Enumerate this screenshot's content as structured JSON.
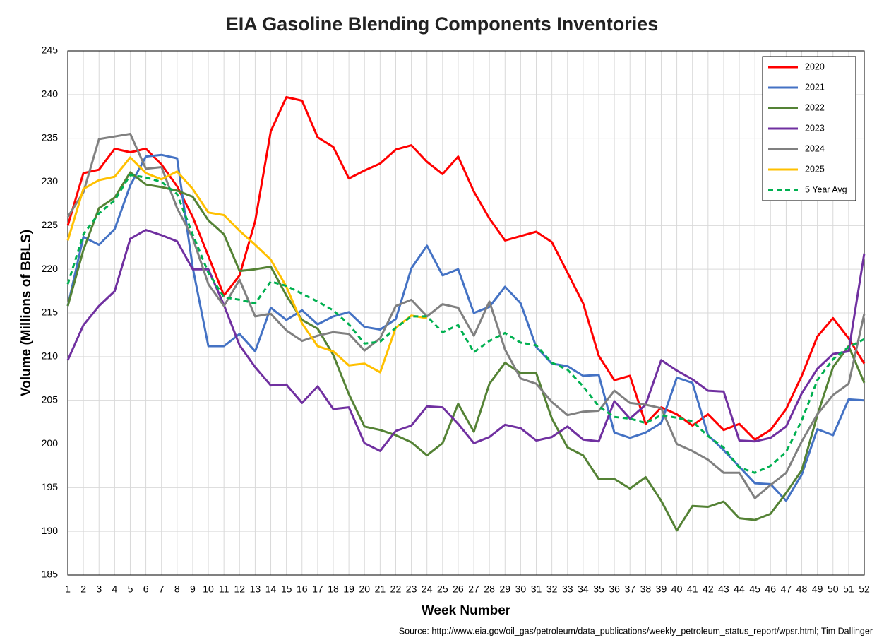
{
  "chart_data": {
    "type": "line",
    "title": "EIA Gasoline Blending Components Inventories",
    "x_label": "Week Number",
    "y_label": "Volume (Millions of BBLS)",
    "source": "Source: http://www.eia.gov/oil_gas/petroleum/data_publications/weekly_petroleum_status_report/wpsr.html; Tim Dallinger",
    "categories": [
      1,
      2,
      3,
      4,
      5,
      6,
      7,
      8,
      9,
      10,
      11,
      12,
      13,
      14,
      15,
      16,
      17,
      18,
      19,
      20,
      21,
      22,
      23,
      24,
      25,
      26,
      27,
      28,
      29,
      30,
      31,
      32,
      33,
      34,
      35,
      36,
      37,
      38,
      39,
      40,
      41,
      42,
      43,
      44,
      45,
      46,
      47,
      48,
      49,
      50,
      51,
      52
    ],
    "ylim": [
      185,
      245
    ],
    "yticks": [
      185,
      190,
      195,
      200,
      205,
      210,
      215,
      220,
      225,
      230,
      235,
      240,
      245
    ],
    "grid": true,
    "legend": "top-right",
    "series": [
      {
        "name": "2020",
        "color": "#ff0000",
        "values": [
          225,
          231,
          231.4,
          233.8,
          233.4,
          233.8,
          232,
          229.5,
          226,
          221.5,
          217,
          219.3,
          225.5,
          235.8,
          239.7,
          239.3,
          235.1,
          234,
          230.4,
          231.3,
          232.1,
          233.7,
          234.2,
          232.3,
          230.9,
          232.9,
          228.9,
          225.8,
          223.3,
          223.8,
          224.3,
          223.1,
          219.6,
          216.1,
          210.1,
          207.3,
          207.8,
          202.3,
          204.2,
          203.4,
          202.1,
          203.4,
          201.6,
          202.3,
          200.5,
          201.6,
          204,
          207.8,
          212.3,
          214.4,
          212.1,
          209.2
        ]
      },
      {
        "name": "2021",
        "color": "#4472c4",
        "values": [
          215.8,
          223.7,
          222.8,
          224.6,
          229.6,
          232.9,
          233.1,
          232.7,
          220.2,
          211.2,
          211.2,
          212.6,
          210.6,
          215.6,
          214.2,
          215.3,
          213.7,
          214.6,
          215.1,
          213.4,
          213.1,
          214.3,
          220.1,
          222.7,
          219.3,
          220,
          215,
          215.7,
          218,
          216.1,
          211.1,
          209.2,
          208.9,
          207.8,
          207.9,
          201.3,
          200.7,
          201.3,
          202.4,
          207.6,
          207,
          201,
          199.3,
          197.4,
          195.5,
          195.4,
          193.5,
          196.5,
          201.7,
          201,
          205.1,
          205
        ]
      },
      {
        "name": "2022",
        "color": "#548235",
        "values": [
          215.8,
          222.2,
          227,
          228.2,
          231.1,
          229.7,
          229.4,
          229,
          228.3,
          225.6,
          224,
          219.8,
          220,
          220.3,
          217,
          214.2,
          213.2,
          210.2,
          205.7,
          202,
          201.6,
          201,
          200.2,
          198.7,
          200.1,
          204.6,
          201.4,
          206.9,
          209.3,
          208.1,
          208.1,
          202.9,
          199.6,
          198.7,
          196,
          196,
          194.9,
          196.2,
          193.5,
          190.1,
          192.9,
          192.8,
          193.4,
          191.5,
          191.3,
          192,
          194.4,
          197,
          203.3,
          208.8,
          211.2,
          207
        ]
      },
      {
        "name": "2023",
        "color": "#7030a0",
        "values": [
          209.6,
          213.6,
          215.8,
          217.5,
          223.5,
          224.5,
          223.9,
          223.2,
          220,
          220,
          215.9,
          211.3,
          208.8,
          206.7,
          206.8,
          204.7,
          206.6,
          204,
          204.2,
          200.1,
          199.2,
          201.5,
          202.1,
          204.3,
          204.2,
          202.3,
          200.1,
          200.8,
          202.2,
          201.8,
          200.4,
          200.8,
          202,
          200.5,
          200.3,
          204.9,
          202.9,
          204.5,
          209.6,
          208.4,
          207.4,
          206.1,
          206,
          200.4,
          200.3,
          200.7,
          202,
          205.8,
          208.6,
          210.3,
          210.6,
          221.8
        ]
      },
      {
        "name": "2024",
        "color": "#808080",
        "values": [
          226,
          228.8,
          234.9,
          235.2,
          235.5,
          231.5,
          231.7,
          227,
          223.6,
          218.3,
          215.8,
          218.8,
          214.6,
          214.9,
          213,
          211.8,
          212.4,
          212.8,
          212.6,
          210.7,
          212.1,
          215.8,
          216.5,
          214.6,
          216,
          215.6,
          212.4,
          216.3,
          210.8,
          207.5,
          206.9,
          204.8,
          203.3,
          203.7,
          203.8,
          206.1,
          204.7,
          204.5,
          204.1,
          200,
          199.2,
          198.2,
          196.7,
          196.7,
          193.8,
          195.3,
          196.7,
          200.3,
          203.4,
          205.6,
          206.9,
          214.9
        ]
      },
      {
        "name": "2025",
        "color": "#ffc000",
        "values": [
          223.3,
          229.2,
          230.2,
          230.6,
          232.8,
          231,
          230.3,
          231.2,
          229.2,
          226.5,
          226.2,
          224.4,
          222.8,
          221.1,
          218,
          213.8,
          211.2,
          210.6,
          209,
          209.2,
          208.2,
          213.3,
          214.7,
          214.4,
          null,
          null,
          null,
          null,
          null,
          null,
          null,
          null,
          null,
          null,
          null,
          null,
          null,
          null,
          null,
          null,
          null,
          null,
          null,
          null,
          null,
          null,
          null,
          null,
          null,
          null,
          null,
          null
        ]
      },
      {
        "name": "5 Year Avg",
        "color": "#00b050",
        "dashed": true,
        "values": [
          218.3,
          224,
          226.4,
          227.9,
          230.8,
          230.5,
          230,
          228.6,
          224,
          219.6,
          216.8,
          216.5,
          216.1,
          218.6,
          218.1,
          217.2,
          216.3,
          215.3,
          213.7,
          211.5,
          211.7,
          213.3,
          214.6,
          214.6,
          212.8,
          213.6,
          210.5,
          211.8,
          212.7,
          211.6,
          211.3,
          209.3,
          208.5,
          206.6,
          204.3,
          203.1,
          202.9,
          202.4,
          203.3,
          203,
          202.6,
          200.9,
          199.6,
          197.3,
          196.7,
          197.5,
          199.1,
          202.7,
          207.3,
          209.7,
          211.1,
          212
        ]
      }
    ]
  }
}
